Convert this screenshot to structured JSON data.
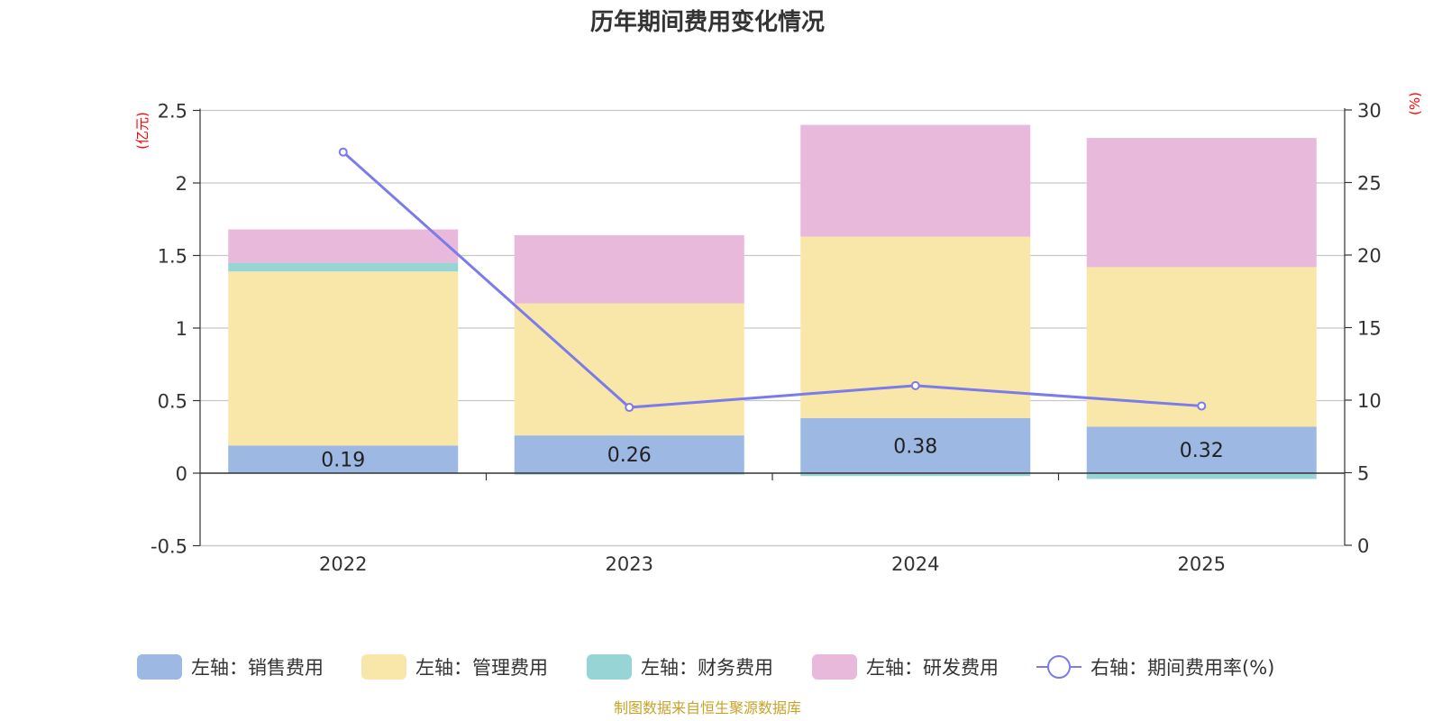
{
  "title": "历年期间费用变化情况",
  "source_note": "制图数据来自恒生聚源数据库",
  "chart_data": {
    "type": "bar",
    "stacked": true,
    "title": "历年期间费用变化情况",
    "categories": [
      "2022",
      "2023",
      "2024",
      "2025"
    ],
    "left_axis": {
      "unit": "(亿元)",
      "ylim": [
        -0.5,
        2.5
      ],
      "ticks": [
        -0.5,
        0,
        0.5,
        1,
        1.5,
        2,
        2.5
      ],
      "tick_labels": [
        "-0.5",
        "0",
        "0.5",
        "1",
        "1.5",
        "2",
        "2.5"
      ]
    },
    "right_axis": {
      "unit": "(%)",
      "ylim": [
        0,
        30
      ],
      "ticks": [
        0,
        5,
        10,
        15,
        20,
        25,
        30
      ],
      "tick_labels": [
        "0",
        "5",
        "10",
        "15",
        "20",
        "25",
        "30"
      ]
    },
    "series": [
      {
        "name": "左轴：销售费用",
        "type": "bar",
        "axis": "left",
        "color": "#9cb8e3",
        "values": [
          0.19,
          0.26,
          0.38,
          0.32
        ],
        "data_labels": [
          "0.19",
          "0.26",
          "0.38",
          "0.32"
        ]
      },
      {
        "name": "左轴：管理费用",
        "type": "bar",
        "axis": "left",
        "color": "#f8e7a8",
        "values": [
          1.2,
          0.91,
          1.25,
          1.1
        ]
      },
      {
        "name": "左轴：财务费用",
        "type": "bar",
        "axis": "left",
        "color": "#96d4d6",
        "values": [
          0.06,
          -0.01,
          -0.02,
          -0.04
        ]
      },
      {
        "name": "左轴：研发费用",
        "type": "bar",
        "axis": "left",
        "color": "#e8b9da",
        "values": [
          0.23,
          0.47,
          0.77,
          0.89
        ]
      },
      {
        "name": "右轴：期间费用率(%)",
        "type": "line",
        "axis": "right",
        "color": "#7b7beb",
        "values": [
          27.1,
          9.5,
          11.0,
          9.6
        ]
      }
    ],
    "grid": true,
    "legend_position": "bottom"
  }
}
